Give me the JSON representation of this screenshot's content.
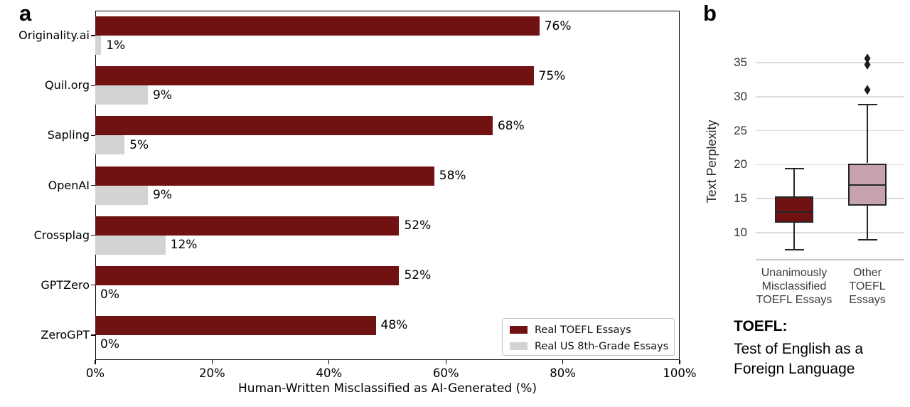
{
  "figure": {
    "panel_a_label": "a",
    "panel_b_label": "b"
  },
  "chart_data": [
    {
      "id": "detector-misclassification-bars",
      "type": "bar",
      "orientation": "horizontal",
      "categories": [
        "Originality.ai",
        "Quil.org",
        "Sapling",
        "OpenAI",
        "Crossplag",
        "GPTZero",
        "ZeroGPT"
      ],
      "series": [
        {
          "name": "Real TOEFL Essays",
          "color": "#701212",
          "values": [
            76,
            75,
            68,
            58,
            52,
            52,
            48
          ]
        },
        {
          "name": "Real US 8th-Grade Essays",
          "color": "#d3d3d3",
          "values": [
            1,
            9,
            5,
            9,
            12,
            0,
            0
          ]
        }
      ],
      "value_suffix": "%",
      "xlabel": "Human-Written Misclassified as AI-Generated (%)",
      "xlim": [
        0,
        100
      ],
      "x_ticks": [
        0,
        20,
        40,
        60,
        80,
        100
      ],
      "x_tick_suffix": "%",
      "legend_position": "lower right",
      "grid": false,
      "frame": true
    },
    {
      "id": "text-perplexity-boxplot",
      "type": "boxplot",
      "ylabel": "Text Perplexity",
      "ylim": [
        6,
        38
      ],
      "y_ticks": [
        10,
        15,
        20,
        25,
        30,
        35
      ],
      "grid": true,
      "groups": [
        {
          "label": "Unanimously\nMisclassified\nTOEFL Essays",
          "fill": "#701212",
          "whisker_low": 7.5,
          "q1": 11.5,
          "median": 13.0,
          "q3": 15.3,
          "whisker_high": 19.4,
          "outliers": []
        },
        {
          "label": "Other\nTOEFL\nEssays",
          "fill": "#c7a4ad",
          "whisker_low": 9.0,
          "q1": 14.0,
          "median": 17.0,
          "q3": 20.2,
          "whisker_high": 28.8,
          "outliers": [
            31.0,
            34.7,
            35.6
          ]
        }
      ]
    }
  ],
  "footnote": {
    "title": "TOEFL:",
    "text": "Test of English as a\nForeign Language"
  }
}
